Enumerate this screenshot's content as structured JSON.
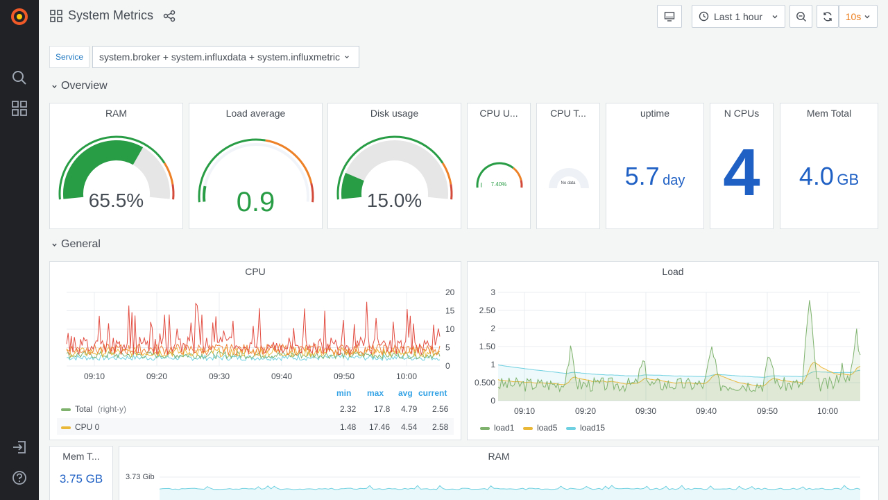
{
  "app": {
    "dashboard_title": "System Metrics"
  },
  "sidebar": {
    "items": [
      "search-icon",
      "dashboards-icon"
    ],
    "bottom": [
      "sign-in-icon",
      "help-icon"
    ]
  },
  "toolbar": {
    "time_range": "Last 1 hour",
    "refresh_interval": "10s"
  },
  "variables": {
    "label": "Service",
    "value": "system.broker + system.influxdata + system.influxmetric"
  },
  "rows": {
    "overview": "Overview",
    "general": "General"
  },
  "overview": {
    "ram": {
      "title": "RAM",
      "value": "65.5%",
      "fraction": 0.655,
      "color": "#299c46"
    },
    "load": {
      "title": "Load average",
      "value": "0.9",
      "fraction": 0.09,
      "color": "#299c46"
    },
    "disk": {
      "title": "Disk usage",
      "value": "15.0%",
      "fraction": 0.15,
      "color": "#299c46"
    },
    "cpu_usage": {
      "title": "CPU U...",
      "value": "7.40%",
      "fraction": 0.074,
      "color": "#299c46"
    },
    "cpu_temp": {
      "title": "CPU T...",
      "value": "No data"
    },
    "uptime": {
      "title": "uptime",
      "value": "5.7",
      "unit": "day"
    },
    "ncpus": {
      "title": "N CPUs",
      "value": "4"
    },
    "memtotal": {
      "title": "Mem Total",
      "value": "4.0",
      "unit": "GB"
    }
  },
  "cpu_panel": {
    "title": "CPU",
    "x_ticks": [
      "09:10",
      "09:20",
      "09:30",
      "09:40",
      "09:50",
      "10:00"
    ],
    "y_ticks": [
      "20",
      "15",
      "10",
      "5",
      "0"
    ],
    "legend_headers": [
      "min",
      "max",
      "avg",
      "current"
    ],
    "legend": [
      {
        "name": "Total",
        "note": "(right-y)",
        "color": "#7eb26d",
        "min": "2.32",
        "max": "17.8",
        "avg": "4.79",
        "current": "2.56"
      },
      {
        "name": "CPU 0",
        "note": "",
        "color": "#eab839",
        "min": "1.48",
        "max": "17.46",
        "avg": "4.54",
        "current": "2.58"
      }
    ]
  },
  "load_panel": {
    "title": "Load",
    "x_ticks": [
      "09:10",
      "09:20",
      "09:30",
      "09:40",
      "09:50",
      "10:00"
    ],
    "y_ticks": [
      "3",
      "2.50",
      "2",
      "1.50",
      "1",
      "0.500",
      "0"
    ],
    "legend": [
      {
        "name": "load1",
        "color": "#7eb26d"
      },
      {
        "name": "load5",
        "color": "#eab839"
      },
      {
        "name": "load15",
        "color": "#6ed0e0"
      }
    ]
  },
  "memt_panel": {
    "title": "Mem T...",
    "value": "3.75 GB"
  },
  "ram_panel": {
    "title": "RAM",
    "y_tick": "3.73 Gib"
  },
  "colors": {
    "green": "#299c46",
    "orange": "#ed8128",
    "red": "#d44a3a",
    "blue": "#1f60c4",
    "gauge_bg": "#e6e6e6"
  }
}
